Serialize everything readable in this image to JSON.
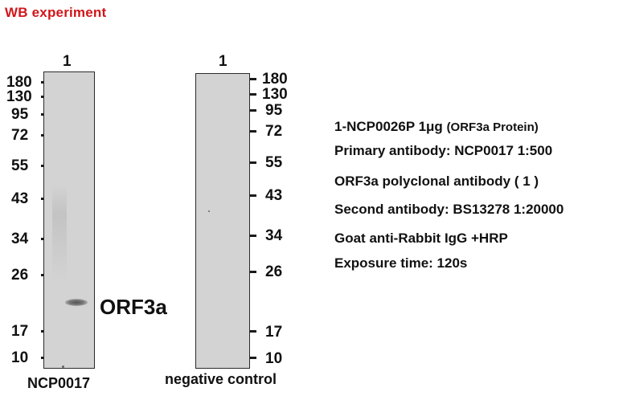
{
  "title": "WB  experiment",
  "left_blot": {
    "lane_number": "1",
    "markers": [
      "180",
      "130",
      "95",
      "72",
      "55",
      "43",
      "34",
      "26",
      "17",
      "10"
    ],
    "band_label": "ORF3a",
    "caption": "NCP0017"
  },
  "right_blot": {
    "lane_number": "1",
    "markers": [
      "180",
      "130",
      "95",
      "72",
      "55",
      "43",
      "34",
      "26",
      "17",
      "10"
    ],
    "caption": "negative control"
  },
  "info": {
    "line1_main": "1-NCP0026P  1μg",
    "line1_small": "(ORF3a Protein)",
    "line2": "Primary antibody: NCP0017 1:500",
    "line3": "ORF3a polyclonal antibody ( 1 )",
    "line4": "Second antibody:  BS13278   1:20000",
    "line5": "Goat anti-Rabbit  IgG +HRP",
    "line6": "Exposure time: 120s"
  },
  "colors": {
    "title": "#d0161b",
    "membrane": "#d3d3d3"
  }
}
